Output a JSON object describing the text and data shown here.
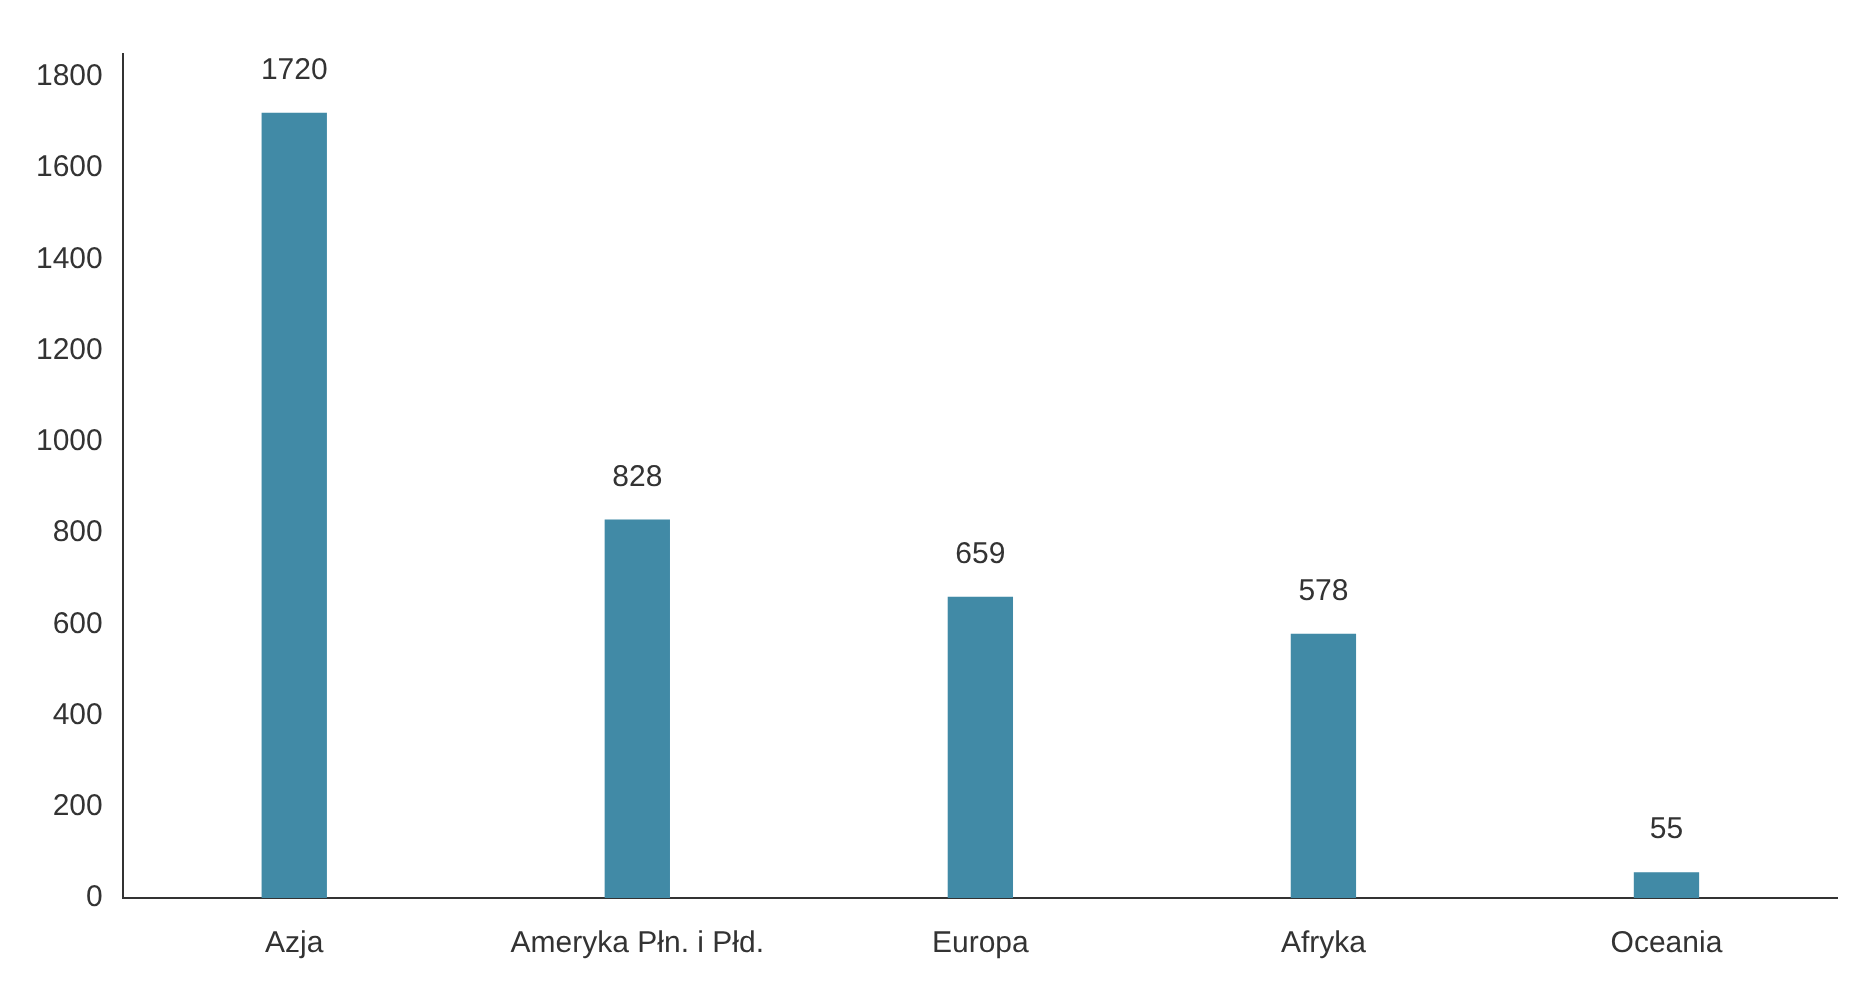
{
  "chart_data": {
    "type": "bar",
    "categories": [
      "Azja",
      "Ameryka Płn. i Płd.",
      "Europa",
      "Afryka",
      "Oceania"
    ],
    "values": [
      1720,
      828,
      659,
      578,
      55
    ],
    "color": "#418aa6",
    "ylim": [
      0,
      1850
    ],
    "yticks": [
      0,
      200,
      400,
      600,
      800,
      1000,
      1200,
      1400,
      1600,
      1800
    ],
    "grid": false,
    "legend": false,
    "data_labels": true
  }
}
